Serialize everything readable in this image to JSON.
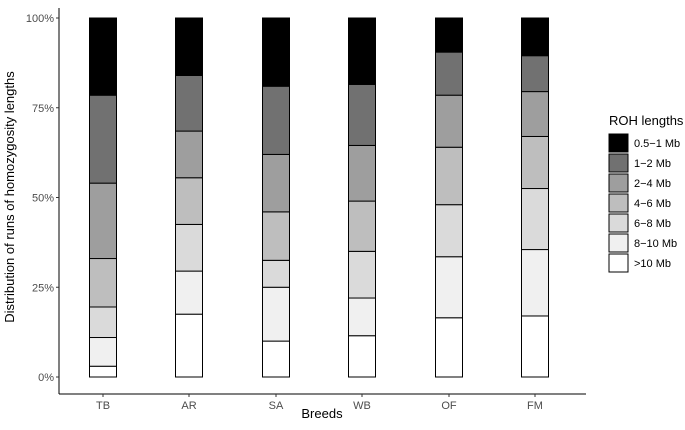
{
  "chart_data": {
    "type": "bar",
    "stacked": true,
    "percent": true,
    "xlabel": "Breeds",
    "ylabel": "Distribution of runs of homozygosity lengths",
    "categories": [
      "TB",
      "AR",
      "SA",
      "WB",
      "OF",
      "FM"
    ],
    "ylim": [
      0,
      1
    ],
    "yticks": [
      0,
      0.25,
      0.5,
      0.75,
      1
    ],
    "ytick_labels": [
      "0%",
      "25%",
      "50%",
      "75%",
      "100%"
    ],
    "grid": false,
    "legend": {
      "title": "ROH lengths",
      "position": "right"
    },
    "series": [
      {
        "name": ">10 Mb",
        "color": "#ffffff",
        "values": [
          0.03,
          0.175,
          0.1,
          0.115,
          0.165,
          0.17
        ]
      },
      {
        "name": "8−10 Mb",
        "color": "#f0f0f0",
        "values": [
          0.08,
          0.12,
          0.15,
          0.105,
          0.17,
          0.185
        ]
      },
      {
        "name": "6−8 Mb",
        "color": "#dadada",
        "values": [
          0.085,
          0.13,
          0.075,
          0.13,
          0.145,
          0.17
        ]
      },
      {
        "name": "4−6 Mb",
        "color": "#bebebe",
        "values": [
          0.135,
          0.13,
          0.135,
          0.14,
          0.16,
          0.145
        ]
      },
      {
        "name": "2−4 Mb",
        "color": "#9e9e9e",
        "values": [
          0.21,
          0.13,
          0.16,
          0.155,
          0.145,
          0.125
        ]
      },
      {
        "name": "1−2 Mb",
        "color": "#717171",
        "values": [
          0.245,
          0.155,
          0.19,
          0.17,
          0.12,
          0.1
        ]
      },
      {
        "name": "0.5−1 Mb",
        "color": "#000000",
        "values": [
          0.215,
          0.16,
          0.19,
          0.185,
          0.095,
          0.105
        ]
      }
    ]
  }
}
